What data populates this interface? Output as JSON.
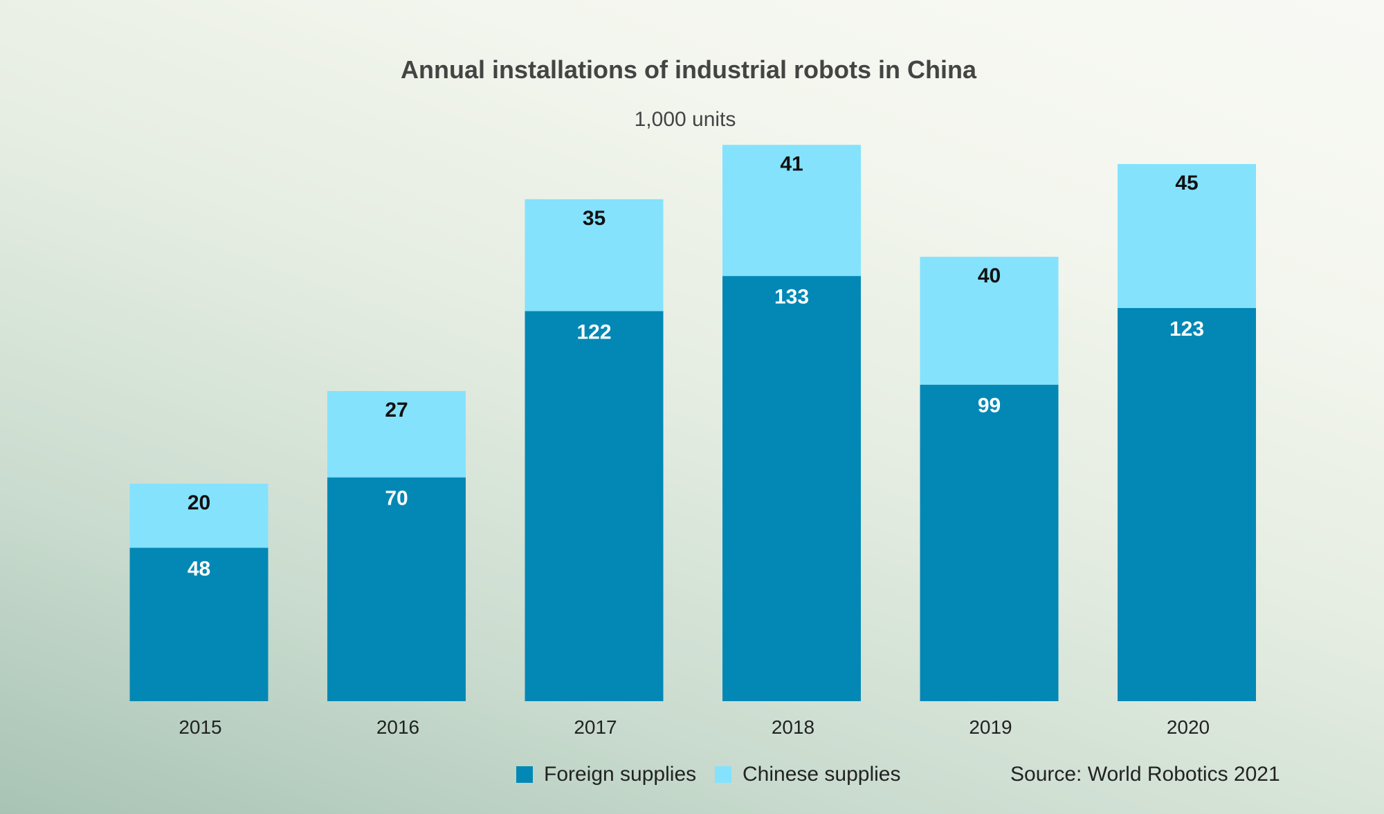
{
  "chart_data": {
    "type": "bar",
    "stacked": true,
    "title": "Annual installations of industrial robots in China",
    "subtitle": "1,000 units",
    "categories": [
      "2015",
      "2016",
      "2017",
      "2018",
      "2019",
      "2020"
    ],
    "series": [
      {
        "name": "Foreign supplies",
        "color": "#0388b5",
        "values": [
          48,
          70,
          122,
          133,
          99,
          123
        ]
      },
      {
        "name": "Chinese supplies",
        "color": "#84e2fd",
        "values": [
          20,
          27,
          35,
          41,
          40,
          45
        ]
      }
    ],
    "ylim": [
      0,
      168
    ],
    "grid": false,
    "legend_position": "bottom",
    "source": "Source: World Robotics 2021"
  }
}
